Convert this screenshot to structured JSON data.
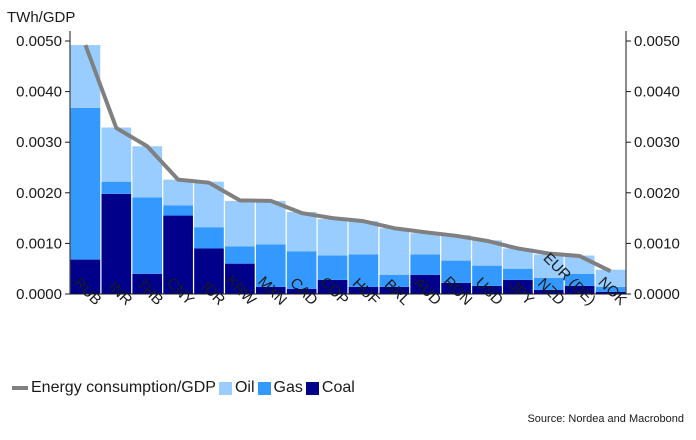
{
  "chart_data": {
    "type": "bar",
    "stacked": true,
    "ylabel": "TWh/GDP",
    "ylim": [
      0,
      0.005
    ],
    "yticks": [
      "0.0000",
      "0.0010",
      "0.0020",
      "0.0030",
      "0.0040",
      "0.0050"
    ],
    "yticks_right": [
      "0.0000",
      "0.0010",
      "0.0020",
      "0.0030",
      "0.0040",
      "0.0050"
    ],
    "categories": [
      "RUB",
      "INR",
      "THB",
      "CNY",
      "IDR",
      "KRW",
      "MXN",
      "CAD",
      "COP",
      "HUF",
      "BRL",
      "AUD",
      "RON",
      "USD",
      "JPY",
      "NZD",
      "EUR (DE)",
      "NOK"
    ],
    "series": [
      {
        "name": "Coal",
        "color": "#00008B",
        "values": [
          0.00068,
          0.00198,
          0.0004,
          0.00155,
          0.0009,
          0.0006,
          0.00014,
          0.0001,
          0.00028,
          0.00014,
          0.00014,
          0.00038,
          0.00022,
          0.00016,
          0.00028,
          8e-05,
          0.00016,
          4e-05
        ]
      },
      {
        "name": "Gas",
        "color": "#3399FF",
        "values": [
          0.003,
          0.00024,
          0.00151,
          0.0002,
          0.00042,
          0.00034,
          0.00084,
          0.00074,
          0.00048,
          0.00064,
          0.00024,
          0.0004,
          0.00044,
          0.0004,
          0.00022,
          0.00024,
          0.00024,
          0.0001
        ]
      },
      {
        "name": "Oil",
        "color": "#99CCFF",
        "values": [
          0.00124,
          0.00107,
          0.00101,
          0.00051,
          0.0009,
          0.0009,
          0.00086,
          0.00078,
          0.00072,
          0.00066,
          0.00092,
          0.00042,
          0.0005,
          0.0005,
          0.0004,
          0.00046,
          0.00036,
          0.00034
        ]
      }
    ],
    "line": {
      "name": "Energy consumption/GDP",
      "color": "#808080",
      "values": [
        0.00492,
        0.00328,
        0.00292,
        0.00226,
        0.0022,
        0.00185,
        0.00184,
        0.0016,
        0.0015,
        0.00144,
        0.0013,
        0.00122,
        0.00115,
        0.00105,
        0.0009,
        0.0008,
        0.00075,
        0.00045
      ]
    },
    "legend": {
      "position": "bottom-left",
      "items": [
        "Energy consumption/GDP",
        "Oil",
        "Gas",
        "Coal"
      ]
    },
    "source": "Source: Nordea and Macrobond",
    "grid": false
  }
}
